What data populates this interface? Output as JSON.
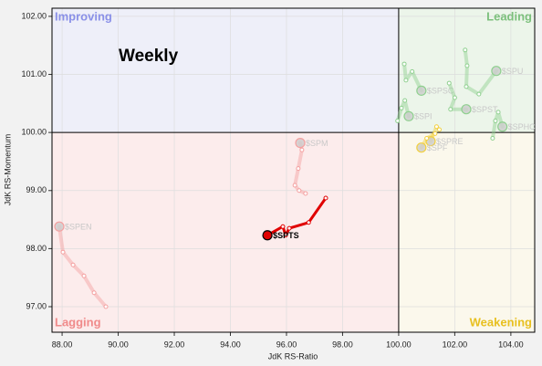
{
  "chart_data": {
    "type": "rrg",
    "annotation": "Weekly",
    "x_label": "JdK RS-Ratio",
    "y_label": "JdK RS-Momentum",
    "xlim": [
      87.64,
      104.85
    ],
    "ylim": [
      96.56,
      102.14
    ],
    "center": [
      100,
      100
    ],
    "grid": true,
    "xticks": [
      {
        "value": 88,
        "label": "88.00"
      },
      {
        "value": 90,
        "label": "90.00"
      },
      {
        "value": 92,
        "label": "92.00"
      },
      {
        "value": 94,
        "label": "94.00"
      },
      {
        "value": 96,
        "label": "96.00"
      },
      {
        "value": 98,
        "label": "98.00"
      },
      {
        "value": 100,
        "label": "100.00"
      },
      {
        "value": 102,
        "label": "102.00"
      },
      {
        "value": 104,
        "label": "104.00"
      }
    ],
    "yticks": [
      {
        "value": 97,
        "label": "97.00"
      },
      {
        "value": 98,
        "label": "98.00"
      },
      {
        "value": 99,
        "label": "99.00"
      },
      {
        "value": 100,
        "label": "100.00"
      },
      {
        "value": 101,
        "label": "101.00"
      },
      {
        "value": 102,
        "label": "102.00"
      }
    ],
    "quadrants": [
      {
        "name": "Improving",
        "corner": "top-left",
        "color": "#8a90e8",
        "background": "#eeeff9"
      },
      {
        "name": "Leading",
        "corner": "top-right",
        "color": "#7cc07c",
        "background": "#ecf5ea"
      },
      {
        "name": "Lagging",
        "corner": "bottom-left",
        "color": "#f08a8a",
        "background": "#fcecec"
      },
      {
        "name": "Weakening",
        "corner": "bottom-right",
        "color": "#e8c020",
        "background": "#fbf8ec"
      }
    ],
    "series": [
      {
        "name": "$SPTS",
        "color": "#e00000",
        "highlighted": true,
        "x": [
          97.4,
          96.79,
          96.1,
          95.97,
          95.87,
          95.32
        ],
        "y": [
          98.87,
          98.45,
          98.35,
          98.23,
          98.38,
          98.23
        ]
      },
      {
        "name": "$SPM",
        "color": "#f4a0a0",
        "x": [
          96.68,
          96.45,
          96.3,
          96.42,
          96.55,
          96.49
        ],
        "y": [
          98.95,
          99.0,
          99.09,
          99.38,
          99.7,
          99.82
        ]
      },
      {
        "name": "$SPEN",
        "color": "#f4a0a0",
        "x": [
          89.56,
          89.14,
          88.78,
          88.39,
          88.03,
          87.9
        ],
        "y": [
          97.0,
          97.24,
          97.53,
          97.72,
          97.94,
          98.38
        ]
      },
      {
        "name": "$SPU",
        "color": "#8fd08f",
        "x": [
          102.37,
          102.44,
          102.41,
          102.86,
          103.48
        ],
        "y": [
          101.42,
          101.15,
          100.79,
          100.66,
          101.06
        ]
      },
      {
        "name": "$SPSC",
        "color": "#8fd08f",
        "x": [
          100.2,
          100.26,
          100.48,
          100.81
        ],
        "y": [
          101.18,
          100.9,
          101.05,
          100.72
        ]
      },
      {
        "name": "$SPST",
        "color": "#8fd08f",
        "x": [
          101.8,
          102.0,
          101.85,
          102.41
        ],
        "y": [
          100.85,
          100.6,
          100.4,
          100.4
        ]
      },
      {
        "name": "$SPI",
        "color": "#8fd08f",
        "x": [
          99.96,
          100.1,
          100.22,
          100.36
        ],
        "y": [
          100.2,
          100.42,
          100.55,
          100.28
        ]
      },
      {
        "name": "$SPHC",
        "color": "#8fd08f",
        "x": [
          103.35,
          103.45,
          103.55,
          103.7
        ],
        "y": [
          99.9,
          100.2,
          100.35,
          100.1
        ]
      },
      {
        "name": "$SPRE",
        "color": "#f2d040",
        "x": [
          101.45,
          101.35,
          101.14
        ],
        "y": [
          100.05,
          100.1,
          99.85
        ]
      },
      {
        "name": "$SPF",
        "color": "#f2d040",
        "x": [
          101.3,
          101.0,
          100.81
        ],
        "y": [
          99.98,
          99.9,
          99.74
        ]
      }
    ]
  }
}
